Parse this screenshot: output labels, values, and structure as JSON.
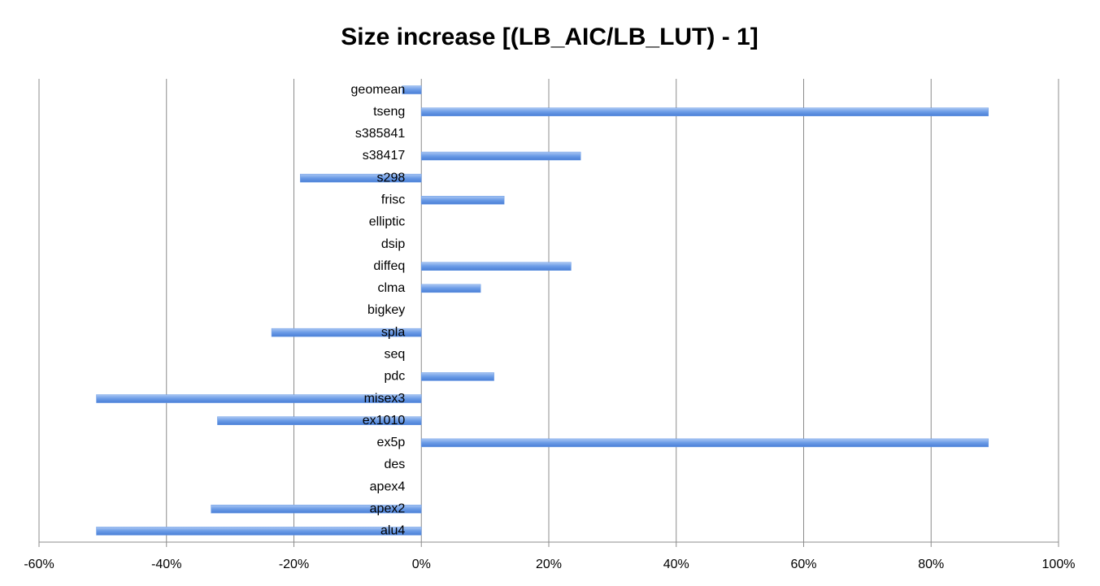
{
  "chart_data": {
    "type": "barh",
    "title": "Size increase [(LB_AIC/LB_LUT) - 1]",
    "categories": [
      "alu4",
      "apex2",
      "apex4",
      "des",
      "ex5p",
      "ex1010",
      "misex3",
      "pdc",
      "seq",
      "spla",
      "bigkey",
      "clma",
      "diffeq",
      "dsip",
      "elliptic",
      "frisc",
      "s298",
      "s38417",
      "s385841",
      "tseng",
      "geomean"
    ],
    "values": [
      -51,
      -33,
      0,
      0,
      89,
      -32,
      -51,
      11.4,
      0,
      -23.5,
      0,
      9.3,
      23.5,
      0,
      0,
      13,
      -19,
      25,
      0,
      89,
      -3
    ],
    "color": "#6a9be6",
    "xlim": [
      -60,
      100
    ],
    "xticks": [
      {
        "value": -60,
        "label": "-60%"
      },
      {
        "value": -40,
        "label": "-40%"
      },
      {
        "value": -20,
        "label": "-20%"
      },
      {
        "value": 0,
        "label": "0%"
      },
      {
        "value": 20,
        "label": "20%"
      },
      {
        "value": 40,
        "label": "40%"
      },
      {
        "value": 60,
        "label": "60%"
      },
      {
        "value": 80,
        "label": "80%"
      },
      {
        "value": 100,
        "label": "100%"
      }
    ],
    "grid": true
  }
}
